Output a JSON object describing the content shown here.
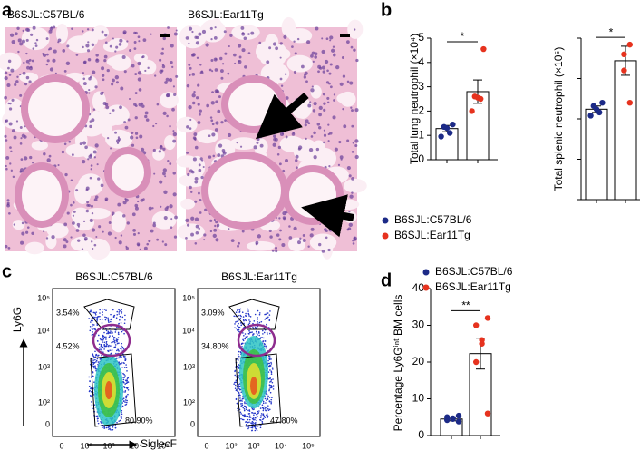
{
  "panel_labels": [
    "a",
    "b",
    "c",
    "d"
  ],
  "histology": {
    "captions": [
      "B6SJL:C57BL/6",
      "B6SJL:Ear11Tg"
    ]
  },
  "flow": {
    "titles": [
      "B6SJL:C57BL/6",
      "B6SJL:Ear11Tg"
    ],
    "y_label": "Ly6G",
    "x_label": "SiglecF",
    "yticks": [
      "10⁵",
      "10⁴",
      "10³",
      "10²",
      "0"
    ],
    "xticks": [
      "0",
      "10²",
      "10³",
      "10⁴",
      "10⁵"
    ],
    "gates": [
      [
        "3.54%",
        "4.52%",
        "80.90%"
      ],
      [
        "3.09%",
        "34.80%",
        "47.80%"
      ]
    ]
  },
  "chart_data": [
    {
      "type": "bar",
      "y_label": "Total lung neutrophil (×10⁴)",
      "categories": [
        null,
        null
      ],
      "values": [
        1.28,
        2.8
      ],
      "errors": [
        0.13,
        0.48
      ],
      "points": [
        [
          1.45,
          1.35,
          1.3,
          1.1,
          0.95
        ],
        [
          4.55,
          2.6,
          2.55,
          2.5,
          2.0
        ]
      ],
      "colors": [
        "#1c2a87",
        "#e6321e"
      ],
      "ylim": [
        0,
        5
      ],
      "yticks": [
        0,
        1,
        2,
        3,
        4,
        5
      ],
      "tick_labels": true,
      "significance": "*",
      "legend": [
        "B6SJL:C57BL/6",
        "B6SJL:Ear11Tg"
      ],
      "legend_position": "bottom"
    },
    {
      "type": "bar",
      "y_label": "Total splenic neutrophil (×10⁵)",
      "categories": [
        null,
        null
      ],
      "values": [
        5.6,
        8.6
      ],
      "errors": [
        0.2,
        0.9
      ],
      "points": [
        [
          6.0,
          5.8,
          5.6,
          5.4,
          5.2
        ],
        [
          9.6,
          9.0,
          8.0,
          6.0
        ]
      ],
      "colors": [
        "#1c2a87",
        "#e6321e"
      ],
      "ylim": [
        0,
        10
      ],
      "yticks": [
        0,
        2.5,
        5,
        7.5,
        10
      ],
      "tick_labels": false,
      "significance": "*"
    },
    {
      "type": "bar",
      "y_label": "Percentage Ly6Gⁱⁿᵗ BM cells",
      "categories": [
        null,
        null
      ],
      "values": [
        4.5,
        22.3
      ],
      "errors": [
        0.5,
        4.2
      ],
      "points": [
        [
          5.4,
          5.0,
          4.7,
          4.5,
          4.2,
          3.8
        ],
        [
          32,
          30,
          26,
          25,
          20,
          6
        ]
      ],
      "colors": [
        "#1c2a87",
        "#e6321e"
      ],
      "ylim": [
        0,
        40
      ],
      "yticks": [
        0,
        10,
        20,
        30,
        40
      ],
      "tick_labels": true,
      "significance": "**",
      "legend": [
        "B6SJL:C57BL/6",
        "B6SJL:Ear11Tg"
      ],
      "legend_position": "top"
    }
  ]
}
